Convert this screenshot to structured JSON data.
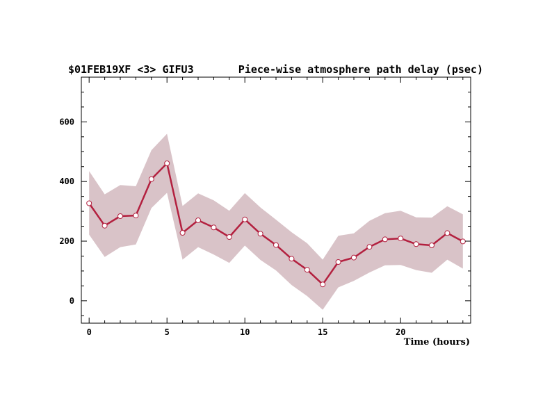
{
  "chart_data": {
    "type": "line",
    "title_left": "$01FEB19XF <3>  GIFU3",
    "title_right": "Piece-wise atmosphere path delay (psec)",
    "xlabel": "Time (hours)",
    "ylabel": "",
    "xlim": [
      -0.5,
      24.5
    ],
    "ylim": [
      -75,
      750
    ],
    "x_ticks": [
      0,
      5,
      10,
      15,
      20
    ],
    "y_ticks": [
      0,
      200,
      400,
      600
    ],
    "grid": false,
    "colors": {
      "line": "#b3203f",
      "band": "#d9c3c8",
      "marker_fill": "#ffffff"
    },
    "series": [
      {
        "x": [
          0,
          1,
          2,
          3,
          4,
          5,
          6,
          7,
          8,
          9,
          10,
          11,
          12,
          13,
          14,
          15,
          16,
          17,
          18,
          19,
          20,
          21,
          22,
          23,
          24
        ],
        "values": [
          327,
          252,
          284,
          286,
          408,
          461,
          228,
          270,
          246,
          214,
          273,
          225,
          187,
          141,
          104,
          55,
          130,
          145,
          181,
          206,
          209,
          190,
          186,
          227,
          199
        ],
        "upper": [
          435,
          357,
          388,
          384,
          505,
          560,
          318,
          360,
          337,
          302,
          361,
          313,
          272,
          230,
          193,
          138,
          218,
          226,
          268,
          294,
          302,
          280,
          279,
          317,
          290
        ],
        "lower": [
          222,
          147,
          180,
          189,
          311,
          362,
          138,
          180,
          155,
          127,
          185,
          137,
          102,
          53,
          16,
          -30,
          45,
          67,
          95,
          119,
          120,
          103,
          94,
          138,
          108
        ]
      }
    ]
  }
}
